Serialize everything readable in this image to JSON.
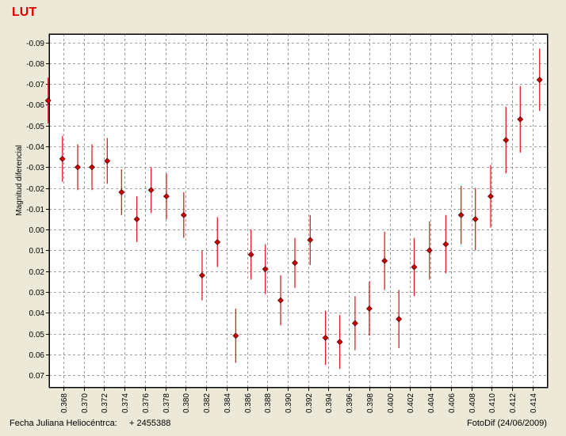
{
  "app": {
    "footer_left_label": "Fecha Juliana Heliocéntrca:",
    "footer_left_value": "+ 2455388",
    "footer_right": "FotoDif (24/06/2009)"
  },
  "colors": {
    "background": "#ece9d8",
    "plot_background": "#ffffff",
    "marker": "#cc0000",
    "errorbar": "#e02020",
    "title": "#e00000"
  },
  "chart_data": {
    "type": "scatter",
    "title": "LUT",
    "xlabel": "",
    "ylabel": "Magnitud diferencial",
    "y_inverted": true,
    "grid": true,
    "xlim": [
      0.3666,
      0.4155
    ],
    "ylim": [
      0.076,
      -0.094
    ],
    "x_ticks": [
      0.368,
      0.37,
      0.372,
      0.374,
      0.376,
      0.378,
      0.38,
      0.382,
      0.384,
      0.386,
      0.388,
      0.39,
      0.392,
      0.394,
      0.396,
      0.398,
      0.4,
      0.402,
      0.404,
      0.406,
      0.408,
      0.41,
      0.412,
      0.414
    ],
    "x_tick_labels": [
      "0.368",
      "0.370",
      "0.372",
      "0.374",
      "0.376",
      "0.378",
      "0.380",
      "0.382",
      "0.384",
      "0.386",
      "0.388",
      "0.390",
      "0.392",
      "0.394",
      "0.396",
      "0.398",
      "0.400",
      "0.402",
      "0.404",
      "0.406",
      "0.408",
      "0.410",
      "0.412",
      "0.414"
    ],
    "y_ticks": [
      -0.09,
      -0.08,
      -0.07,
      -0.06,
      -0.05,
      -0.04,
      -0.03,
      -0.02,
      -0.01,
      0.0,
      0.01,
      0.02,
      0.03,
      0.04,
      0.05,
      0.06,
      0.07
    ],
    "y_tick_labels": [
      "-0.09",
      "-0.08",
      "-0.07",
      "-0.06",
      "-0.05",
      "-0.04",
      "-0.03",
      "-0.02",
      "-0.01",
      "0.00",
      "0.01",
      "0.02",
      "0.03",
      "0.04",
      "0.05",
      "0.06",
      "0.07"
    ],
    "series": [
      {
        "x": [
          0.3665,
          0.3679,
          0.3694,
          0.3708,
          0.3723,
          0.3737,
          0.3752,
          0.3766,
          0.3781,
          0.3798,
          0.3816,
          0.3831,
          0.3849,
          0.3864,
          0.3878,
          0.3893,
          0.3907,
          0.3922,
          0.3937,
          0.3951,
          0.3966,
          0.398,
          0.3995,
          0.4009,
          0.4024,
          0.4039,
          0.4055,
          0.407,
          0.4084,
          0.4099,
          0.4114,
          0.4128,
          0.4147
        ],
        "y": [
          -0.062,
          -0.034,
          -0.03,
          -0.03,
          -0.033,
          -0.018,
          -0.005,
          -0.019,
          -0.016,
          -0.007,
          0.022,
          0.006,
          0.051,
          0.012,
          0.019,
          0.034,
          0.016,
          0.005,
          0.052,
          0.054,
          0.045,
          0.038,
          0.015,
          0.043,
          0.018,
          0.01,
          0.007,
          -0.007,
          -0.005,
          -0.016,
          -0.043,
          -0.053,
          -0.072
        ],
        "err": [
          0.011,
          0.011,
          0.011,
          0.011,
          0.011,
          0.011,
          0.011,
          0.011,
          0.011,
          0.011,
          0.012,
          0.012,
          0.013,
          0.012,
          0.012,
          0.012,
          0.012,
          0.012,
          0.013,
          0.013,
          0.013,
          0.013,
          0.014,
          0.014,
          0.014,
          0.014,
          0.014,
          0.014,
          0.015,
          0.015,
          0.016,
          0.016,
          0.015
        ]
      }
    ]
  }
}
